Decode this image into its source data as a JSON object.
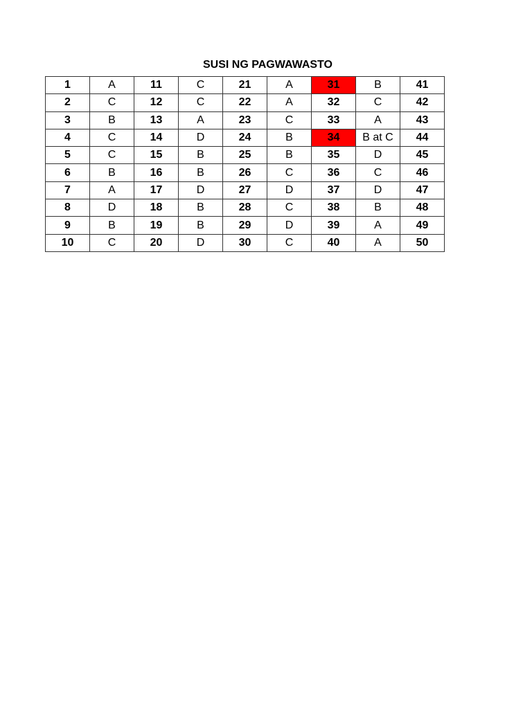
{
  "title": "SUSI NG PAGWAWASTO",
  "highlight_color": "#ff0000",
  "highlighted_items": [
    "31",
    "34"
  ],
  "rows": [
    [
      "1",
      "A",
      "11",
      "C",
      "21",
      "A",
      "31",
      "B",
      "41"
    ],
    [
      "2",
      "C",
      "12",
      "C",
      "22",
      "A",
      "32",
      "C",
      "42"
    ],
    [
      "3",
      "B",
      "13",
      "A",
      "23",
      "C",
      "33",
      "A",
      "43"
    ],
    [
      "4",
      "C",
      "14",
      "D",
      "24",
      "B",
      "34",
      "B at C",
      "44"
    ],
    [
      "5",
      "C",
      "15",
      "B",
      "25",
      "B",
      "35",
      "D",
      "45"
    ],
    [
      "6",
      "B",
      "16",
      "B",
      "26",
      "C",
      "36",
      "C",
      "46"
    ],
    [
      "7",
      "A",
      "17",
      "D",
      "27",
      "D",
      "37",
      "D",
      "47"
    ],
    [
      "8",
      "D",
      "18",
      "B",
      "28",
      "C",
      "38",
      "B",
      "48"
    ],
    [
      "9",
      "B",
      "19",
      "B",
      "29",
      "D",
      "39",
      "A",
      "49"
    ],
    [
      "10",
      "C",
      "20",
      "D",
      "30",
      "C",
      "40",
      "A",
      "50"
    ]
  ]
}
